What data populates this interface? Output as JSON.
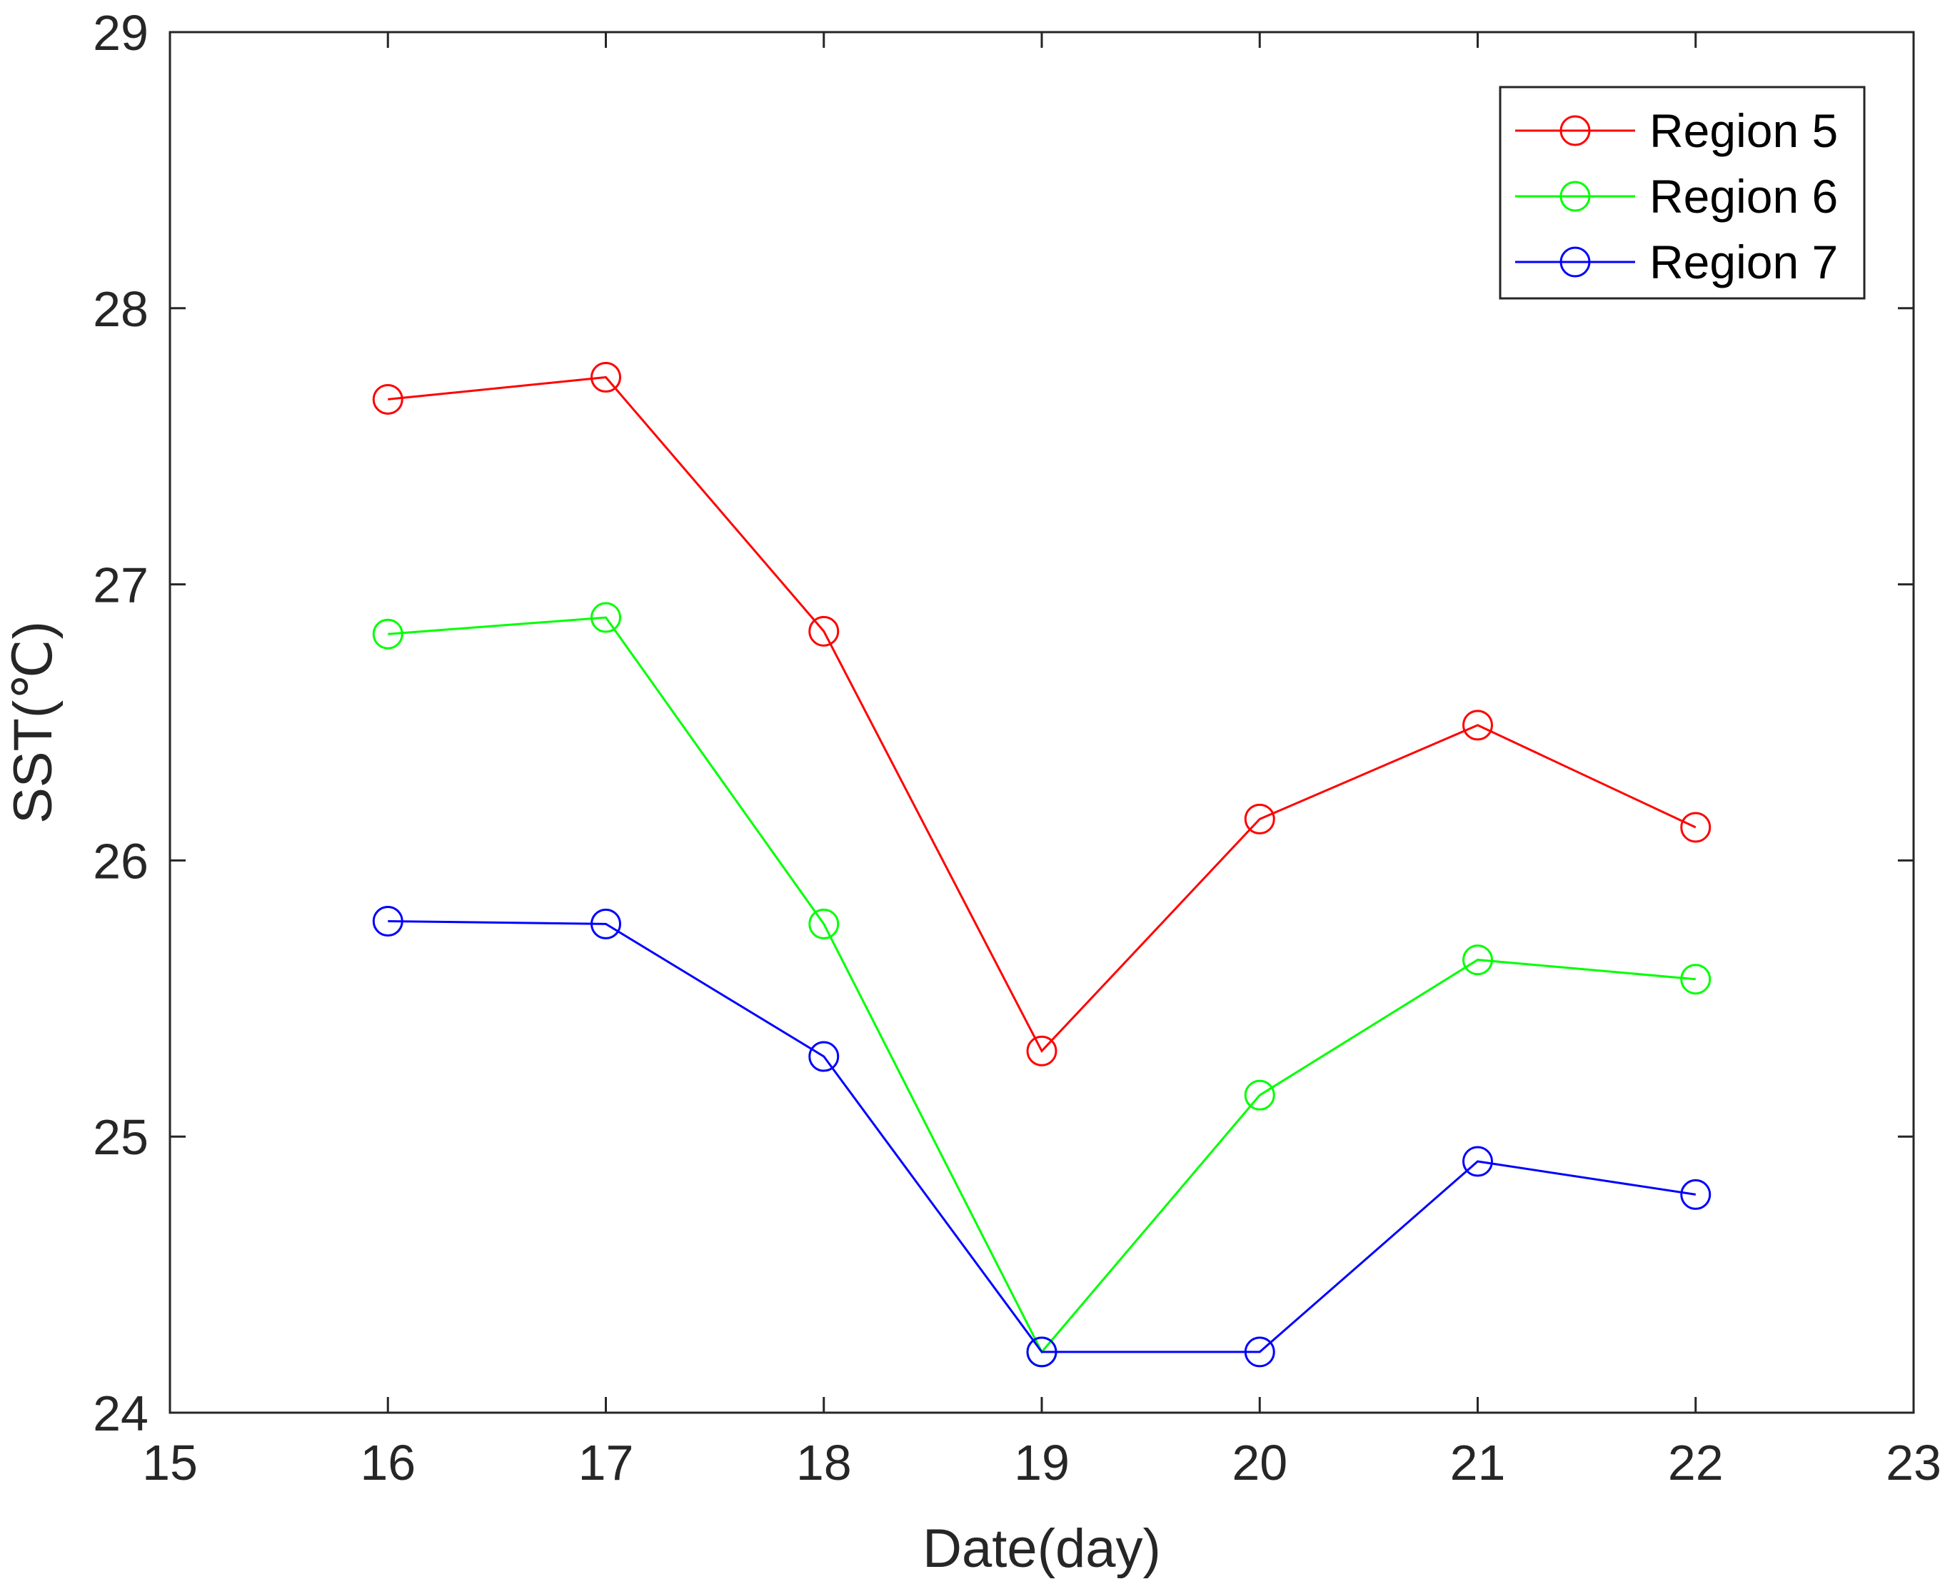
{
  "chart_data": {
    "type": "line",
    "title": "",
    "xlabel": "Date(day)",
    "ylabel": "SST(℃)",
    "xlim": [
      15,
      23
    ],
    "ylim": [
      24,
      29
    ],
    "xticks": [
      15,
      16,
      17,
      18,
      19,
      20,
      21,
      22,
      23
    ],
    "yticks": [
      24,
      25,
      26,
      27,
      28,
      29
    ],
    "grid": false,
    "legend_position": "top-right",
    "x": [
      16,
      17,
      18,
      19,
      20,
      21,
      22
    ],
    "series": [
      {
        "name": "Region 5",
        "color": "#ff0000",
        "marker": "circle",
        "values": [
          27.67,
          27.75,
          26.83,
          25.31,
          26.15,
          26.49,
          26.12
        ]
      },
      {
        "name": "Region 6",
        "color": "#00ff00",
        "marker": "circle",
        "values": [
          26.82,
          26.88,
          25.77,
          24.22,
          25.15,
          25.64,
          25.57
        ]
      },
      {
        "name": "Region 7",
        "color": "#0000ff",
        "marker": "circle",
        "values": [
          25.78,
          25.77,
          25.29,
          24.22,
          24.22,
          24.91,
          24.79
        ]
      }
    ]
  }
}
